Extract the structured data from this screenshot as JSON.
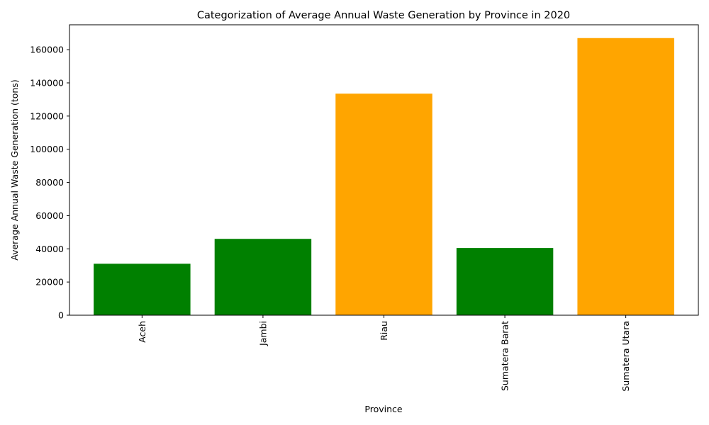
{
  "chart_data": {
    "type": "bar",
    "title": "Categorization of Average Annual Waste Generation by Province in 2020",
    "xlabel": "Province",
    "ylabel": "Average Annual Waste Generation (tons)",
    "categories": [
      "Aceh",
      "Jambi",
      "Riau",
      "Sumatera Barat",
      "Sumatera Utara"
    ],
    "values": [
      31000,
      46000,
      133500,
      40500,
      167000
    ],
    "bar_colors": [
      "#008000",
      "#008000",
      "#ffa500",
      "#008000",
      "#ffa500"
    ],
    "ylim": [
      0,
      175000
    ],
    "yticks": [
      0,
      20000,
      40000,
      60000,
      80000,
      100000,
      120000,
      140000,
      160000
    ],
    "ytick_labels": [
      "0",
      "20000",
      "40000",
      "60000",
      "80000",
      "100000",
      "120000",
      "140000",
      "160000"
    ],
    "xtick_rotation": "vertical",
    "grid": false,
    "legend": "none"
  }
}
